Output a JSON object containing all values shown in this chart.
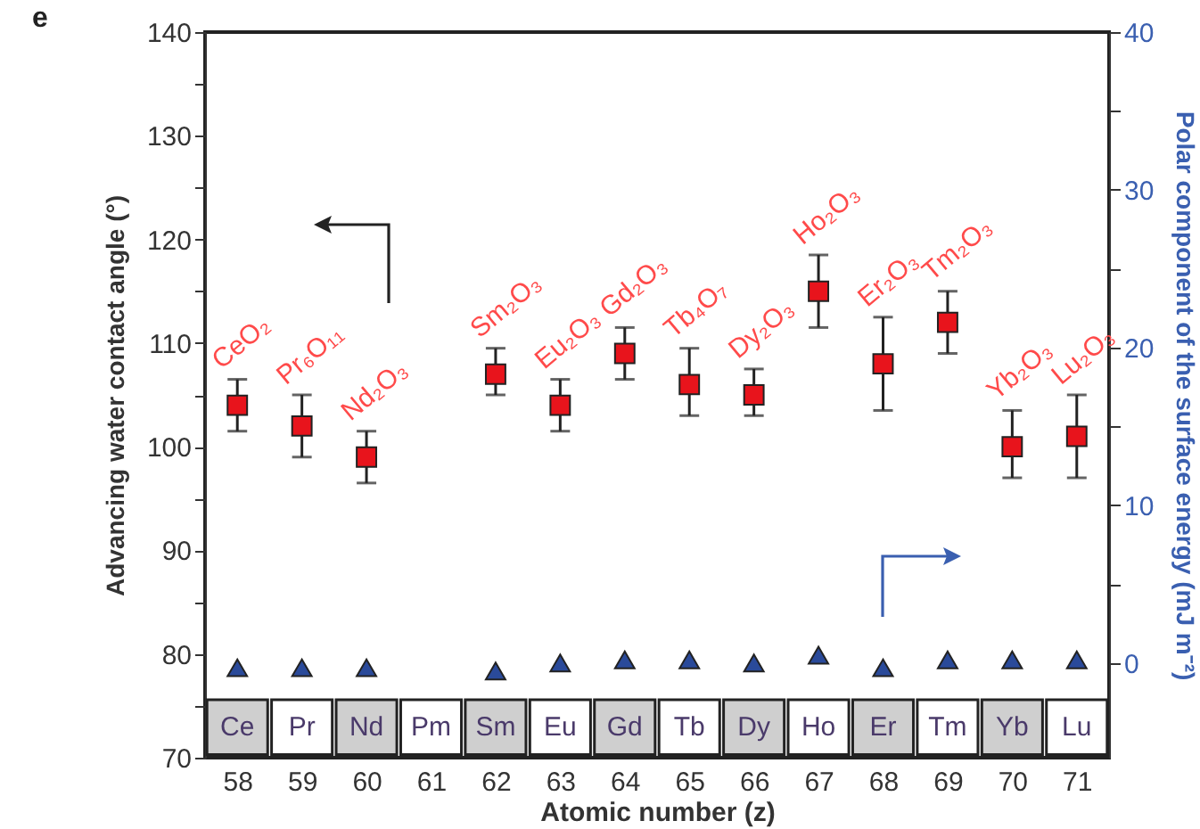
{
  "chart_data": {
    "type": "scatter",
    "title": "e",
    "xlabel": "Atomic number (z)",
    "ylabel": "Advancing water contact angle (°)",
    "y2label": "Polar component of the surface energy (mJ m⁻²)",
    "x": [
      58,
      59,
      60,
      61,
      62,
      63,
      64,
      65,
      66,
      67,
      68,
      69,
      70,
      71
    ],
    "xlim": [
      57.5,
      71.5
    ],
    "xticks": [
      58,
      59,
      60,
      61,
      62,
      63,
      64,
      65,
      66,
      67,
      68,
      69,
      70,
      71
    ],
    "ylim": [
      70,
      140
    ],
    "yticks": [
      70,
      {
        "value": 75,
        "label": null
      },
      80,
      {
        "value": 85,
        "label": null
      },
      90,
      {
        "value": 95,
        "label": null
      },
      100,
      {
        "value": 105,
        "label": null
      },
      110,
      {
        "value": 115,
        "label": null
      },
      120,
      {
        "value": 125,
        "label": null
      },
      130,
      {
        "value": 135,
        "label": null
      },
      140
    ],
    "y2lim": [
      -6,
      40
    ],
    "y2ticks": [
      0,
      {
        "value": 5,
        "label": null
      },
      10,
      {
        "value": 15,
        "label": null
      },
      20,
      {
        "value": 25,
        "label": null
      },
      30,
      {
        "value": 35,
        "label": null
      },
      40
    ],
    "grid": false,
    "series": [
      {
        "color": "#e8141c",
        "marker": "square",
        "values": [
          104,
          102,
          99,
          null,
          107,
          104,
          109,
          106,
          105,
          115,
          108,
          112,
          100,
          101
        ],
        "errors": [
          [
            101.5,
            106.5
          ],
          [
            99,
            105
          ],
          [
            96.5,
            101.5
          ],
          null,
          [
            105,
            109.5
          ],
          [
            101.5,
            106.5
          ],
          [
            106.5,
            111.5
          ],
          [
            103,
            109.5
          ],
          [
            103,
            107.5
          ],
          [
            111.5,
            118.5
          ],
          [
            103.5,
            112.5
          ],
          [
            109,
            115
          ],
          [
            97,
            103.5
          ],
          [
            97,
            105
          ]
        ],
        "value_labels": [
          "CeO₂",
          "Pr₆O₁₁",
          "Nd₂O₃",
          null,
          "Sm₂O₃",
          "Eu₂O₃",
          "Gd₂O₃",
          "Tb₄O₇",
          "Dy₂O₃",
          "Ho₂O₃",
          "Er₂O₃",
          "Tm₂O₃",
          "Yb₂O₃",
          "Lu₂O₃"
        ]
      },
      {
        "color": "#2a4a9a",
        "marker": "triangle",
        "axis": "y2",
        "values": [
          -0.3,
          -0.3,
          -0.3,
          null,
          -0.5,
          0,
          0.2,
          0.2,
          0,
          0.5,
          -0.3,
          0.2,
          0.2,
          0.2
        ]
      }
    ],
    "annotations": [
      {
        "text": "Ce",
        "x": 58,
        "y": 73
      },
      {
        "text": "Pr",
        "x": 59,
        "y": 73
      },
      {
        "text": "Nd",
        "x": 60,
        "y": 73
      },
      {
        "text": "Pm",
        "x": 61,
        "y": 73
      },
      {
        "text": "Sm",
        "x": 62,
        "y": 73
      },
      {
        "text": "Eu",
        "x": 63,
        "y": 73
      },
      {
        "text": "Gd",
        "x": 64,
        "y": 73
      },
      {
        "text": "Tb",
        "x": 65,
        "y": 73
      },
      {
        "text": "Dy",
        "x": 66,
        "y": 73
      },
      {
        "text": "Ho",
        "x": 67,
        "y": 73
      },
      {
        "text": "Er",
        "x": 68,
        "y": 73
      },
      {
        "text": "Tm",
        "x": 69,
        "y": 73
      },
      {
        "text": "Yb",
        "x": 70,
        "y": 73
      },
      {
        "text": "Lu",
        "x": 71,
        "y": 73
      }
    ]
  }
}
